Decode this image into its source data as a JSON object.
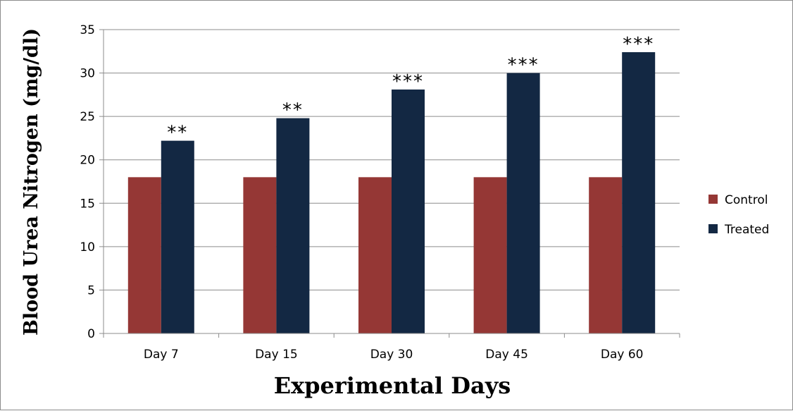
{
  "chart_data": {
    "type": "bar",
    "categories": [
      "Day 7",
      "Day 15",
      "Day 30",
      "Day 45",
      "Day 60"
    ],
    "series": [
      {
        "name": "Control",
        "color": "#953735",
        "values": [
          18,
          18,
          18,
          18,
          18
        ]
      },
      {
        "name": "Treated",
        "color": "#132843",
        "values": [
          22.2,
          24.8,
          28.1,
          30.0,
          32.4
        ]
      }
    ],
    "annotations": [
      "**",
      "**",
      "***",
      "***",
      "***"
    ],
    "xlabel": "Experimental Days",
    "ylabel": "Blood Urea Nitrogen (mg/dl)",
    "ylim": [
      0,
      35
    ],
    "yticks": [
      0,
      5,
      10,
      15,
      20,
      25,
      30,
      35
    ],
    "grid": true,
    "legend_position": "right"
  }
}
